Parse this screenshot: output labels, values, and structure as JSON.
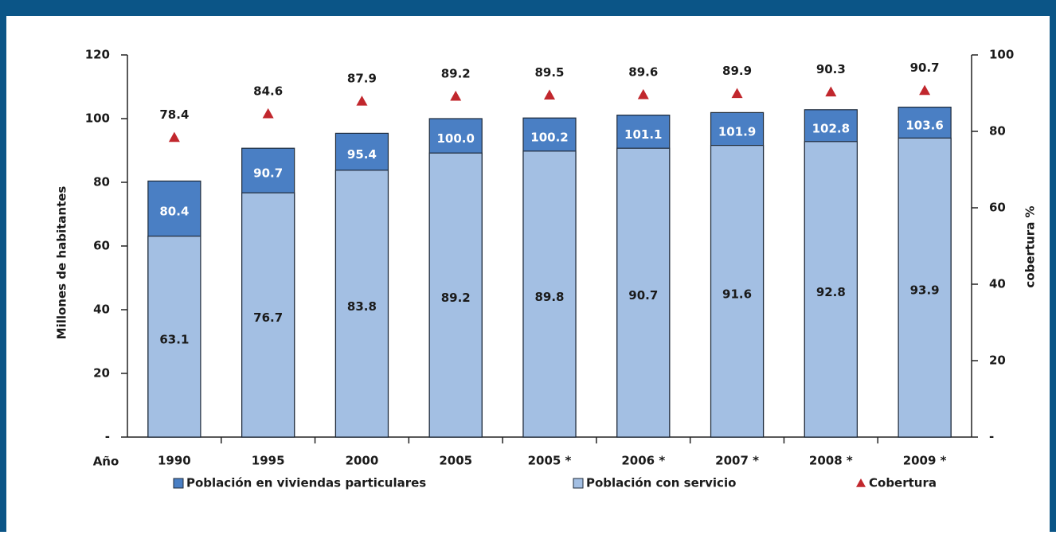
{
  "chart_data": {
    "type": "bar",
    "x_label": "Año",
    "y_label": "Millones de habitantes",
    "y2_label": "cobertura %",
    "categories": [
      "1990",
      "1995",
      "2000",
      "2005",
      "2005 *",
      "2006 *",
      "2007 *",
      "2008 *",
      "2009 *"
    ],
    "series": [
      {
        "name": "Población en viviendas particulares",
        "color": "#4a7fc4",
        "values": [
          80.4,
          90.7,
          95.4,
          100,
          100.2,
          101.1,
          101.9,
          102.8,
          103.6
        ],
        "value_labels": [
          "80.4",
          "90.7",
          "95.4",
          "100.0",
          "100.2",
          "101.1",
          "101.9",
          "102.8",
          "103.6"
        ]
      },
      {
        "name": "Población con servicio",
        "color": "#a3bfe3",
        "values": [
          63.1,
          76.7,
          83.8,
          89.2,
          89.8,
          90.7,
          91.6,
          92.8,
          93.9
        ]
      },
      {
        "name": "Cobertura",
        "color": "#c1272d",
        "axis": "y2",
        "marker": "triangle",
        "values": [
          78.4,
          84.6,
          87.9,
          89.2,
          89.5,
          89.6,
          89.9,
          90.3,
          90.7
        ]
      }
    ],
    "ylim": [
      0,
      120
    ],
    "yticks": [
      {
        "value": 0,
        "label": "-"
      },
      20,
      40,
      60,
      80,
      100,
      120
    ],
    "y2lim": [
      0,
      100
    ],
    "y2ticks": [
      {
        "value": 0,
        "label": "-"
      },
      20,
      40,
      60,
      80,
      100
    ],
    "grid": false
  }
}
